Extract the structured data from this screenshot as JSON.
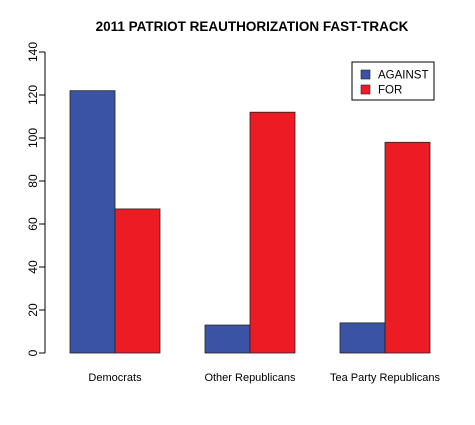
{
  "chart_data": {
    "type": "bar",
    "title": "2011 PATRIOT REAUTHORIZATION FAST-TRACK",
    "xlabel": "",
    "ylabel": "",
    "categories": [
      "Democrats",
      "Other Republicans",
      "Tea Party Republicans"
    ],
    "series": [
      {
        "name": "AGAINST",
        "color": "#3A53A4",
        "values": [
          122,
          13,
          14
        ]
      },
      {
        "name": "FOR",
        "color": "#ED1C24",
        "values": [
          67,
          112,
          98
        ]
      }
    ],
    "ylim": [
      0,
      140
    ],
    "yticks": [
      0,
      20,
      40,
      60,
      80,
      100,
      120,
      140
    ],
    "grid": false,
    "legend_position": "top-right",
    "bar_mode": "grouped"
  }
}
